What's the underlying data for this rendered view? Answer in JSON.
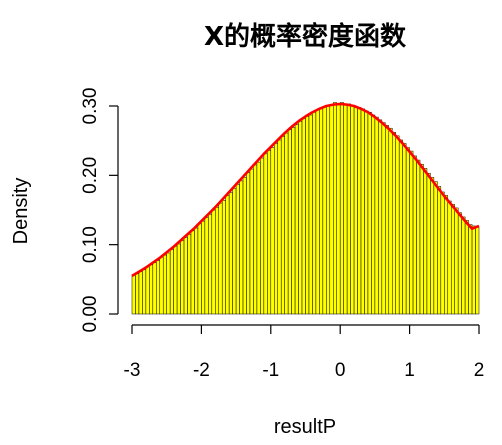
{
  "chart_data": {
    "type": "bar",
    "title": "X的概率密度函数",
    "xlabel": "resultP",
    "ylabel": "Density",
    "xlim": [
      -3,
      2
    ],
    "ylim": [
      0,
      0.3
    ],
    "x_ticks": [
      "-3",
      "-2",
      "-1",
      "0",
      "1",
      "2"
    ],
    "y_ticks": [
      "0.00",
      "0.10",
      "0.20",
      "0.30"
    ],
    "bin_width": 0.05,
    "bar_fill": "#ffff00",
    "bar_stroke": "#000000",
    "curve_color": "#ff0000",
    "grid": false,
    "density_curve": {
      "x": [
        -3.0,
        -2.9,
        -2.8,
        -2.7,
        -2.6,
        -2.5,
        -2.4,
        -2.3,
        -2.2,
        -2.1,
        -2.0,
        -1.9,
        -1.8,
        -1.7,
        -1.6,
        -1.5,
        -1.4,
        -1.3,
        -1.2,
        -1.1,
        -1.0,
        -0.9,
        -0.8,
        -0.7,
        -0.6,
        -0.5,
        -0.4,
        -0.3,
        -0.2,
        -0.1,
        0.0,
        0.1,
        0.2,
        0.3,
        0.4,
        0.5,
        0.6,
        0.7,
        0.8,
        0.9,
        1.0,
        1.1,
        1.2,
        1.3,
        1.4,
        1.5,
        1.6,
        1.7,
        1.8,
        1.9,
        2.0
      ],
      "y": [
        0.055,
        0.061,
        0.067,
        0.074,
        0.081,
        0.089,
        0.097,
        0.106,
        0.115,
        0.124,
        0.134,
        0.144,
        0.154,
        0.165,
        0.176,
        0.187,
        0.198,
        0.209,
        0.22,
        0.231,
        0.241,
        0.251,
        0.261,
        0.27,
        0.278,
        0.285,
        0.291,
        0.296,
        0.3,
        0.302,
        0.303,
        0.302,
        0.3,
        0.296,
        0.291,
        0.284,
        0.276,
        0.267,
        0.257,
        0.246,
        0.234,
        0.222,
        0.209,
        0.196,
        0.183,
        0.17,
        0.158,
        0.146,
        0.134,
        0.123,
        0.127
      ]
    },
    "histogram": {
      "bin_starts": [
        -3.0,
        -2.95,
        -2.9,
        -2.85,
        -2.8,
        -2.75,
        -2.7,
        -2.65,
        -2.6,
        -2.55,
        -2.5,
        -2.45,
        -2.4,
        -2.35,
        -2.3,
        -2.25,
        -2.2,
        -2.15,
        -2.1,
        -2.05,
        -2.0,
        -1.95,
        -1.9,
        -1.85,
        -1.8,
        -1.75,
        -1.7,
        -1.65,
        -1.6,
        -1.55,
        -1.5,
        -1.45,
        -1.4,
        -1.35,
        -1.3,
        -1.25,
        -1.2,
        -1.15,
        -1.1,
        -1.05,
        -1.0,
        -0.95,
        -0.9,
        -0.85,
        -0.8,
        -0.75,
        -0.7,
        -0.65,
        -0.6,
        -0.55,
        -0.5,
        -0.45,
        -0.4,
        -0.35,
        -0.3,
        -0.25,
        -0.2,
        -0.15,
        -0.1,
        -0.05,
        0.0,
        0.05,
        0.1,
        0.15,
        0.2,
        0.25,
        0.3,
        0.35,
        0.4,
        0.45,
        0.5,
        0.55,
        0.6,
        0.65,
        0.7,
        0.75,
        0.8,
        0.85,
        0.9,
        0.95,
        1.0,
        1.05,
        1.1,
        1.15,
        1.2,
        1.25,
        1.3,
        1.35,
        1.4,
        1.45,
        1.5,
        1.55,
        1.6,
        1.65,
        1.7,
        1.75,
        1.8,
        1.85,
        1.9,
        1.95
      ],
      "density": [
        0.056,
        0.058,
        0.061,
        0.064,
        0.068,
        0.071,
        0.074,
        0.077,
        0.082,
        0.085,
        0.088,
        0.093,
        0.098,
        0.101,
        0.106,
        0.11,
        0.115,
        0.12,
        0.124,
        0.13,
        0.134,
        0.139,
        0.144,
        0.15,
        0.154,
        0.16,
        0.164,
        0.171,
        0.175,
        0.181,
        0.187,
        0.192,
        0.197,
        0.204,
        0.209,
        0.215,
        0.219,
        0.225,
        0.231,
        0.236,
        0.24,
        0.246,
        0.251,
        0.256,
        0.261,
        0.266,
        0.269,
        0.273,
        0.278,
        0.282,
        0.285,
        0.287,
        0.291,
        0.294,
        0.296,
        0.299,
        0.3,
        0.302,
        0.305,
        0.302,
        0.305,
        0.301,
        0.303,
        0.3,
        0.298,
        0.298,
        0.296,
        0.293,
        0.291,
        0.287,
        0.284,
        0.28,
        0.276,
        0.272,
        0.268,
        0.262,
        0.257,
        0.251,
        0.246,
        0.24,
        0.235,
        0.228,
        0.222,
        0.216,
        0.21,
        0.203,
        0.197,
        0.191,
        0.184,
        0.176,
        0.171,
        0.163,
        0.158,
        0.153,
        0.146,
        0.14,
        0.135,
        0.129,
        0.127,
        0.125
      ]
    }
  }
}
